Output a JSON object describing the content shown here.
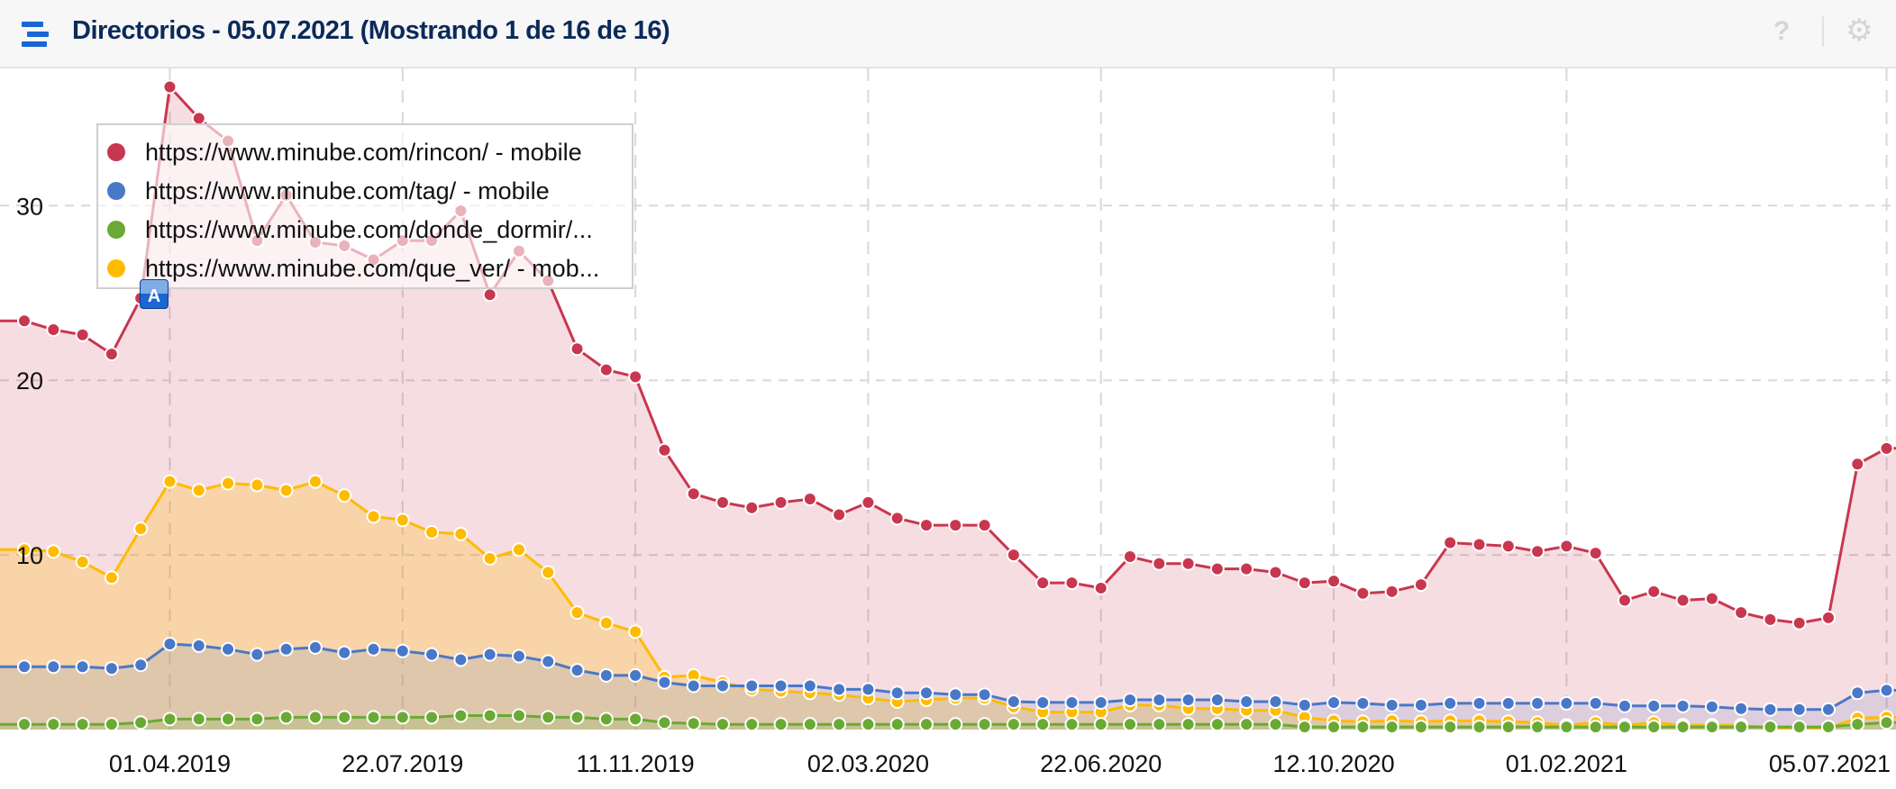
{
  "header": {
    "title": "Directorios - 05.07.2021 (Mostrando 1 de 16 de 16)",
    "menu_icon": "hamburger-menu-icon",
    "help_icon": "question-mark-icon",
    "help_glyph": "?",
    "settings_icon": "gear-icon",
    "settings_glyph": "⚙"
  },
  "chart_data": {
    "type": "area",
    "title": "",
    "xlabel": "",
    "ylabel": "",
    "ylim": [
      0,
      38
    ],
    "grid": true,
    "legend_placement": "top-left",
    "y_ticks": [
      "10",
      "20",
      "30"
    ],
    "x_ticks": [
      "01.04.2019",
      "22.07.2019",
      "11.11.2019",
      "02.03.2020",
      "22.06.2020",
      "12.10.2020",
      "01.02.2021",
      "05.07.2021"
    ],
    "annotation": "A",
    "annotation_date": "18.03.2019",
    "x": [
      "21.01.2019",
      "04.02.2019",
      "18.02.2019",
      "04.03.2019",
      "18.03.2019",
      "01.04.2019",
      "15.04.2019",
      "29.04.2019",
      "13.05.2019",
      "27.05.2019",
      "10.06.2019",
      "24.06.2019",
      "08.07.2019",
      "22.07.2019",
      "05.08.2019",
      "19.08.2019",
      "02.09.2019",
      "16.09.2019",
      "30.09.2019",
      "14.10.2019",
      "28.10.2019",
      "11.11.2019",
      "25.11.2019",
      "09.12.2019",
      "23.12.2019",
      "06.01.2020",
      "20.01.2020",
      "03.02.2020",
      "17.02.2020",
      "02.03.2020",
      "16.03.2020",
      "30.03.2020",
      "13.04.2020",
      "27.04.2020",
      "11.05.2020",
      "25.05.2020",
      "08.06.2020",
      "22.06.2020",
      "06.07.2020",
      "20.07.2020",
      "03.08.2020",
      "17.08.2020",
      "31.08.2020",
      "14.09.2020",
      "28.09.2020",
      "12.10.2020",
      "26.10.2020",
      "09.11.2020",
      "23.11.2020",
      "07.12.2020",
      "21.12.2020",
      "04.01.2021",
      "18.01.2021",
      "01.02.2021",
      "15.02.2021",
      "01.03.2021",
      "15.03.2021",
      "29.03.2021",
      "12.04.2021",
      "26.04.2021",
      "10.05.2021",
      "24.05.2021",
      "07.06.2021",
      "21.06.2021",
      "05.07.2021"
    ],
    "series": [
      {
        "name": "https://www.minube.com/rincon/ - mobile",
        "color": "#c8374f",
        "values": [
          23.4,
          22.9,
          22.6,
          21.5,
          24.7,
          36.8,
          35.0,
          33.7,
          28.0,
          30.6,
          27.9,
          27.7,
          26.9,
          28.0,
          28.0,
          29.7,
          24.9,
          27.4,
          25.7,
          21.8,
          20.6,
          20.2,
          16.0,
          13.5,
          13.0,
          12.7,
          13.0,
          13.2,
          12.3,
          13.0,
          12.1,
          11.7,
          11.7,
          11.7,
          10.0,
          8.4,
          8.4,
          8.1,
          9.9,
          9.5,
          9.5,
          9.2,
          9.2,
          9.0,
          8.4,
          8.5,
          7.8,
          7.9,
          8.3,
          10.7,
          10.6,
          10.5,
          10.2,
          10.5,
          10.1,
          7.4,
          7.9,
          7.4,
          7.5,
          6.7,
          6.3,
          6.1,
          6.4,
          15.2,
          16.1
        ]
      },
      {
        "name": "https://www.minube.com/tag/ - mobile",
        "color": "#4a78c8",
        "values": [
          3.6,
          3.6,
          3.6,
          3.5,
          3.7,
          4.9,
          4.8,
          4.6,
          4.3,
          4.6,
          4.7,
          4.4,
          4.6,
          4.5,
          4.3,
          4.0,
          4.3,
          4.2,
          3.9,
          3.4,
          3.1,
          3.1,
          2.7,
          2.5,
          2.5,
          2.5,
          2.5,
          2.5,
          2.3,
          2.3,
          2.1,
          2.1,
          2.0,
          2.0,
          1.6,
          1.55,
          1.55,
          1.55,
          1.7,
          1.7,
          1.7,
          1.7,
          1.6,
          1.6,
          1.4,
          1.55,
          1.5,
          1.4,
          1.4,
          1.5,
          1.5,
          1.5,
          1.5,
          1.5,
          1.5,
          1.35,
          1.35,
          1.35,
          1.3,
          1.2,
          1.15,
          1.15,
          1.15,
          2.1,
          2.25
        ]
      },
      {
        "name": "https://www.minube.com/donde_dormir/...",
        "color": "#6aaa34",
        "values": [
          0.3,
          0.3,
          0.3,
          0.3,
          0.4,
          0.6,
          0.6,
          0.6,
          0.6,
          0.7,
          0.7,
          0.7,
          0.7,
          0.7,
          0.7,
          0.8,
          0.8,
          0.8,
          0.7,
          0.7,
          0.6,
          0.6,
          0.4,
          0.35,
          0.3,
          0.3,
          0.3,
          0.3,
          0.3,
          0.3,
          0.3,
          0.3,
          0.3,
          0.3,
          0.3,
          0.3,
          0.3,
          0.3,
          0.3,
          0.3,
          0.3,
          0.3,
          0.3,
          0.3,
          0.15,
          0.15,
          0.15,
          0.15,
          0.15,
          0.15,
          0.15,
          0.15,
          0.15,
          0.15,
          0.15,
          0.15,
          0.15,
          0.15,
          0.15,
          0.15,
          0.15,
          0.15,
          0.15,
          0.3,
          0.4
        ]
      },
      {
        "name": "https://www.minube.com/que_ver/ - mob...",
        "color": "#ffbb00",
        "values": [
          10.3,
          10.2,
          9.6,
          8.7,
          11.5,
          14.2,
          13.7,
          14.1,
          14.0,
          13.7,
          14.2,
          13.4,
          12.2,
          12.0,
          11.3,
          11.2,
          9.8,
          10.3,
          9.0,
          6.7,
          6.1,
          5.6,
          3.0,
          3.1,
          2.7,
          2.3,
          2.2,
          2.1,
          2.0,
          1.8,
          1.6,
          1.7,
          1.8,
          1.8,
          1.3,
          1.0,
          1.0,
          1.0,
          1.4,
          1.4,
          1.2,
          1.2,
          1.1,
          1.1,
          0.7,
          0.5,
          0.45,
          0.5,
          0.45,
          0.5,
          0.5,
          0.45,
          0.4,
          0.25,
          0.4,
          0.25,
          0.4,
          0.25,
          0.25,
          0.25,
          0.1,
          0.1,
          0.1,
          0.65,
          0.7
        ]
      }
    ]
  }
}
